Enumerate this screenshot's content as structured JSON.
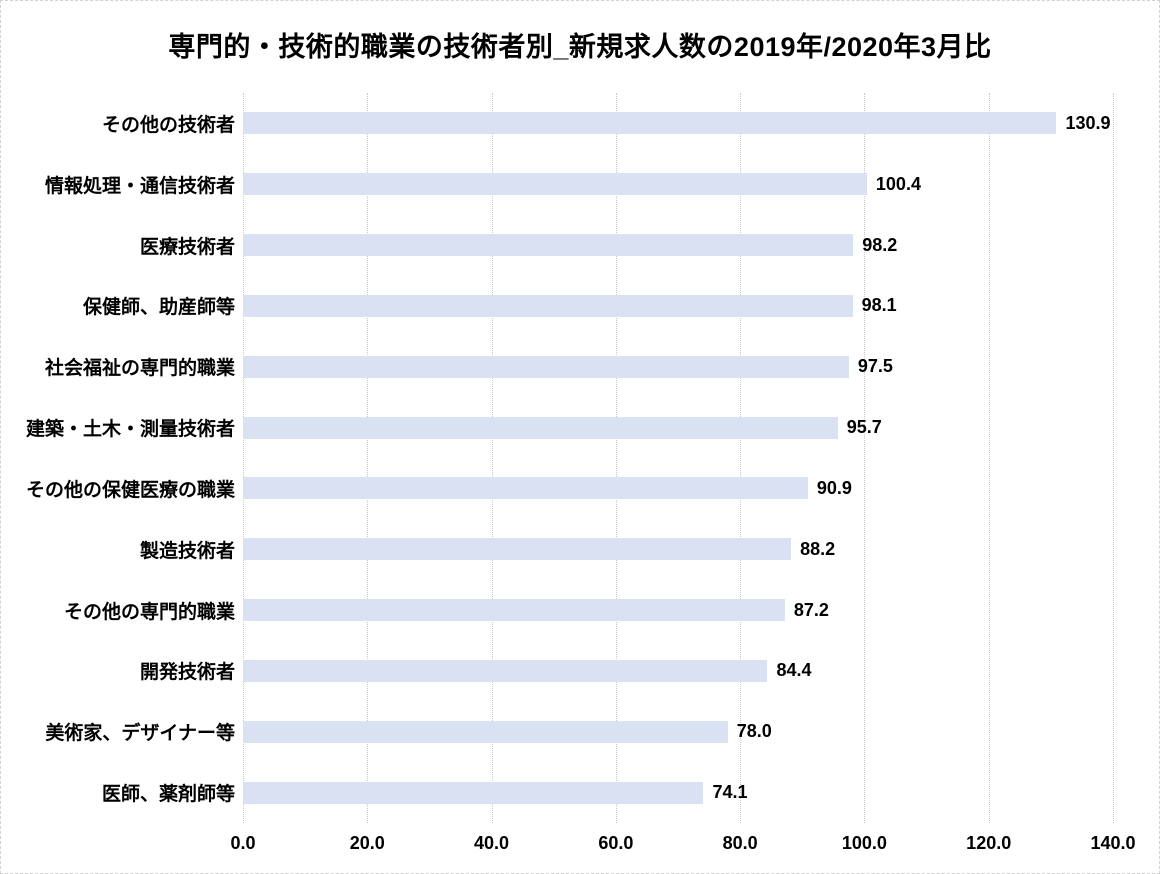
{
  "chart_data": {
    "type": "bar",
    "orientation": "horizontal",
    "title": "専門的・技術的職業の技術者別_新規求人数の2019年/2020年3月比",
    "categories": [
      "その他の技術者",
      "情報処理・通信技術者",
      "医療技術者",
      "保健師、助産師等",
      "社会福祉の専門的職業",
      "建築・土木・測量技術者",
      "その他の保健医療の職業",
      "製造技術者",
      "その他の専門的職業",
      "開発技術者",
      "美術家、デザイナー等",
      "医師、薬剤師等"
    ],
    "values": [
      130.9,
      100.4,
      98.2,
      98.1,
      97.5,
      95.7,
      90.9,
      88.2,
      87.2,
      84.4,
      78.0,
      74.1
    ],
    "xlim": [
      0,
      140
    ],
    "x_ticks": [
      0,
      20,
      40,
      60,
      80,
      100,
      120,
      140
    ],
    "x_tick_labels": [
      "0.0",
      "20.0",
      "40.0",
      "60.0",
      "80.0",
      "100.0",
      "120.0",
      "140.0"
    ],
    "value_labels": [
      "130.9",
      "100.4",
      "98.2",
      "98.1",
      "97.5",
      "95.7",
      "90.9",
      "88.2",
      "87.2",
      "84.4",
      "78.0",
      "74.1"
    ],
    "bar_color": "#D9E1F2",
    "gridline_color": "#C8C8C8",
    "text_color": "#000000",
    "background_color": "#FFFFFF",
    "grid": true,
    "legend": false
  }
}
